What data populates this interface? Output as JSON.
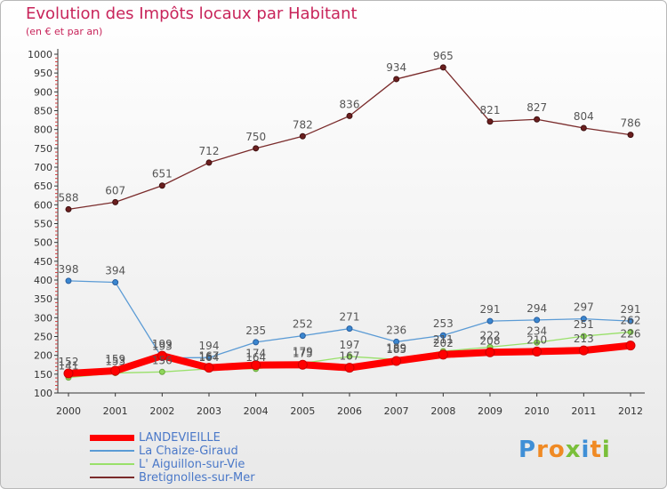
{
  "header": {
    "title": "Evolution des Impôts locaux par Habitant",
    "subtitle": "(en € et par an)"
  },
  "logo": {
    "text": "Proxiti",
    "letters": [
      "P",
      "r",
      "o",
      "x",
      "i",
      "t",
      "i"
    ],
    "colors": [
      "#3f8fd6",
      "#f08a24",
      "#f08a24",
      "#7abf3a",
      "#3f8fd6",
      "#f08a24",
      "#7abf3a"
    ]
  },
  "chart_data": {
    "type": "line",
    "title": "Evolution des Impôts locaux par Habitant",
    "subtitle": "(en € et par an)",
    "x": [
      2000,
      2001,
      2002,
      2003,
      2004,
      2005,
      2006,
      2007,
      2008,
      2009,
      2010,
      2011,
      2012
    ],
    "ylim": [
      100,
      1000
    ],
    "yticks": [
      100,
      150,
      200,
      250,
      300,
      350,
      400,
      450,
      500,
      550,
      600,
      650,
      700,
      750,
      800,
      850,
      900,
      950,
      1000
    ],
    "grid": false,
    "legend_position": "bottom-left",
    "series": [
      {
        "name": "LANDEVIEILLE",
        "color": "#ff0000",
        "values": [
          152,
          159,
          199,
          167,
          174,
          175,
          167,
          185,
          202,
          208,
          210,
          213,
          226
        ]
      },
      {
        "name": "La Chaize-Giraud",
        "color": "#5b9bd5",
        "values": [
          398,
          394,
          193,
          194,
          235,
          252,
          271,
          236,
          253,
          291,
          294,
          297,
          291
        ]
      },
      {
        "name": "L' Aiguillon-sur-Vie",
        "color": "#99e06a",
        "values": [
          141,
          153,
          156,
          164,
          164,
          179,
          197,
          189,
          211,
          222,
          234,
          251,
          262
        ]
      },
      {
        "name": "Bretignolles-sur-Mer",
        "color": "#7a2b2b",
        "values": [
          588,
          607,
          651,
          712,
          750,
          782,
          836,
          934,
          965,
          821,
          827,
          804,
          786
        ]
      }
    ]
  }
}
